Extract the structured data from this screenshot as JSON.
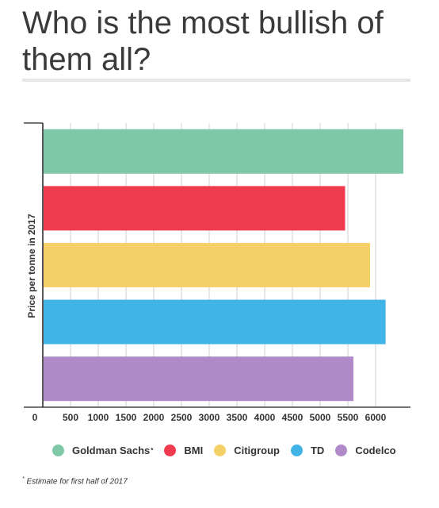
{
  "chart_data": {
    "type": "bar",
    "orientation": "horizontal",
    "title": "Who is the most bullish of them all?",
    "ylabel": "Price per tonne in 2017",
    "xlabel": "",
    "xlim": [
      0,
      6500
    ],
    "xticks": [
      0,
      500,
      1000,
      1500,
      2000,
      2500,
      3000,
      3500,
      4000,
      4500,
      5000,
      5500,
      6000
    ],
    "grid": true,
    "legend_position": "bottom",
    "categories": [
      "Goldman Sachs",
      "BMI",
      "Citigroup",
      "TD",
      "Codelco"
    ],
    "values": [
      6500,
      5450,
      5900,
      6180,
      5600
    ],
    "colors": [
      "#7ec8a8",
      "#f03b4e",
      "#f5d068",
      "#40b4e6",
      "#b08ac8"
    ],
    "footnote_marker": "*",
    "footnote": "Estimate for first half of 2017"
  }
}
